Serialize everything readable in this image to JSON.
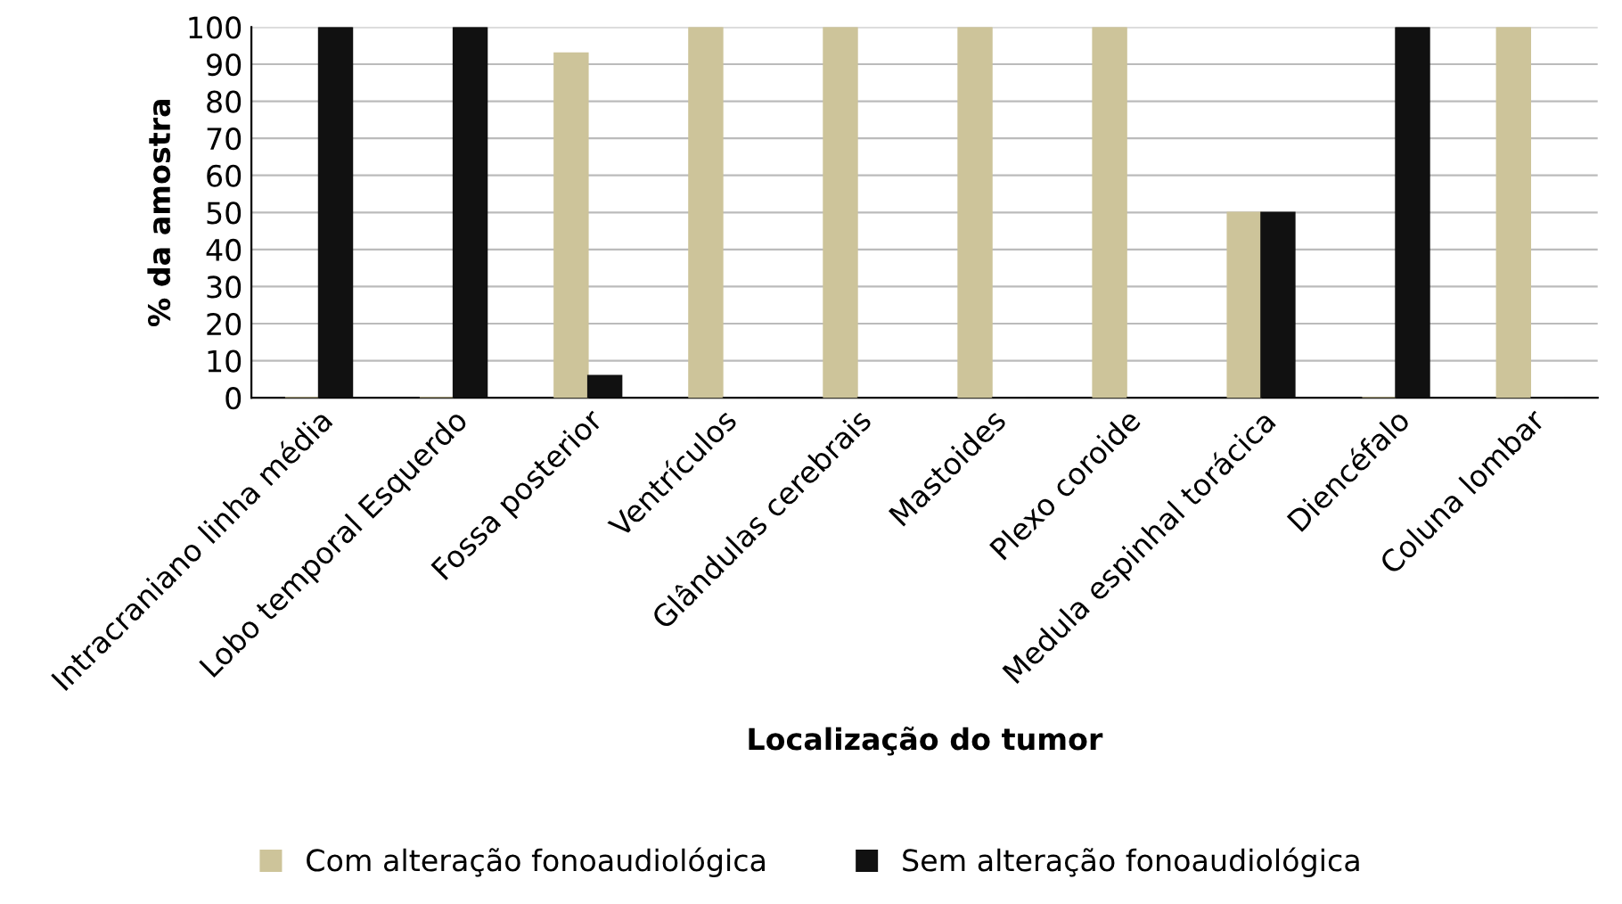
{
  "chart_data": {
    "type": "bar",
    "xlabel": "Localização do tumor",
    "ylabel": "% da amostra",
    "categories": [
      "Intracraniano linha média",
      "Lobo temporal Esquerdo",
      "Fossa posterior",
      "Ventrículos",
      "Glândulas cerebrais",
      "Mastoides",
      "Plexo coroide",
      "Medula espinhal torácica",
      "Diencéfalo",
      "Coluna lombar"
    ],
    "series": [
      {
        "name": "Com alteração fonoaudiológica",
        "color": "#cdc49a",
        "values": [
          0,
          0,
          93,
          100,
          100,
          100,
          100,
          50,
          0,
          100
        ]
      },
      {
        "name": "Sem alteração fonoaudiológica",
        "color": "#111111",
        "values": [
          100,
          100,
          6,
          0,
          0,
          0,
          0,
          50,
          100,
          0
        ]
      }
    ],
    "ylim": [
      0,
      100
    ],
    "yticks": [
      0,
      10,
      20,
      30,
      40,
      50,
      60,
      70,
      80,
      90,
      100
    ],
    "grid": "y",
    "legend": "bottom"
  }
}
